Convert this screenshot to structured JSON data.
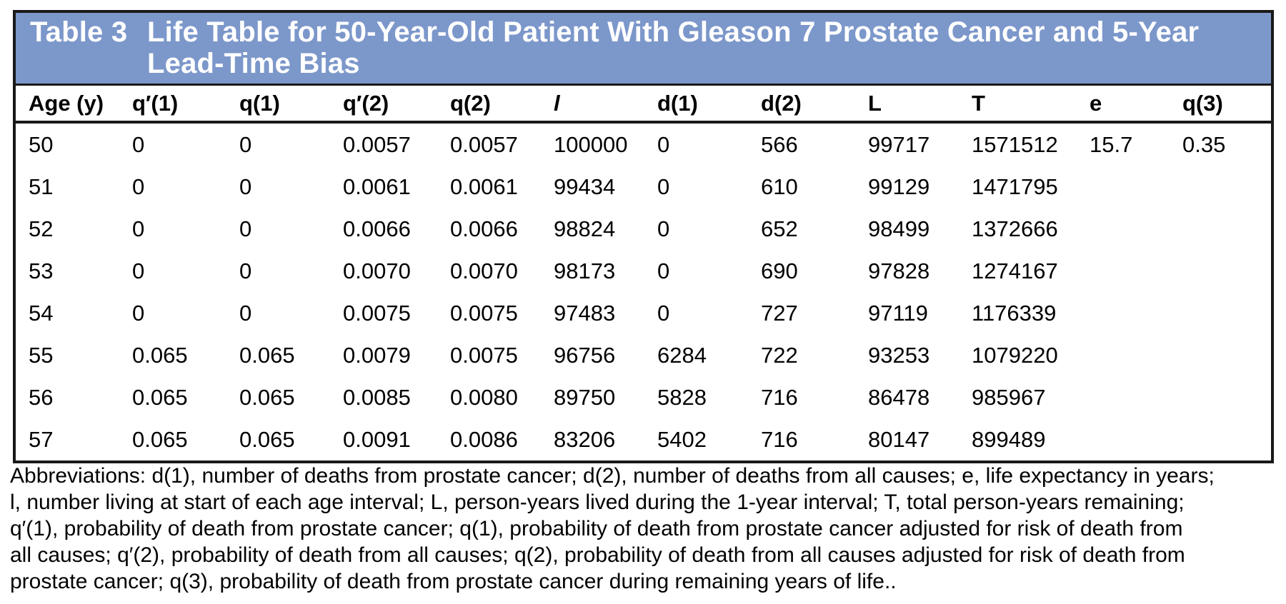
{
  "colors": {
    "header_bg": "#7c97ca",
    "header_text": "#ffffff",
    "border": "#191919",
    "body_text": "#000000"
  },
  "title": {
    "label": "Table 3",
    "text": "Life Table for 50-Year-Old Patient With Gleason 7 Prostate Cancer and 5-Year Lead-Time Bias"
  },
  "table": {
    "columns": [
      {
        "label": "Age (y)",
        "italic": false
      },
      {
        "label": "q′(1)",
        "italic": false
      },
      {
        "label": "q(1)",
        "italic": false
      },
      {
        "label": "q′(2)",
        "italic": false
      },
      {
        "label": "q(2)",
        "italic": false
      },
      {
        "label": "l",
        "italic": true
      },
      {
        "label": "d(1)",
        "italic": false
      },
      {
        "label": "d(2)",
        "italic": false
      },
      {
        "label": "L",
        "italic": false
      },
      {
        "label": "T",
        "italic": false
      },
      {
        "label": "e",
        "italic": false
      },
      {
        "label": "q(3)",
        "italic": false
      }
    ],
    "rows": [
      [
        "50",
        "0",
        "0",
        "0.0057",
        "0.0057",
        "100000",
        "0",
        "566",
        "99717",
        "1571512",
        "15.7",
        "0.35"
      ],
      [
        "51",
        "0",
        "0",
        "0.0061",
        "0.0061",
        "99434",
        "0",
        "610",
        "99129",
        "1471795",
        "",
        ""
      ],
      [
        "52",
        "0",
        "0",
        "0.0066",
        "0.0066",
        "98824",
        "0",
        "652",
        "98499",
        "1372666",
        "",
        ""
      ],
      [
        "53",
        "0",
        "0",
        "0.0070",
        "0.0070",
        "98173",
        "0",
        "690",
        "97828",
        "1274167",
        "",
        ""
      ],
      [
        "54",
        "0",
        "0",
        "0.0075",
        "0.0075",
        "97483",
        "0",
        "727",
        "97119",
        "1176339",
        "",
        ""
      ],
      [
        "55",
        "0.065",
        "0.065",
        "0.0079",
        "0.0075",
        "96756",
        "6284",
        "722",
        "93253",
        "1079220",
        "",
        ""
      ],
      [
        "56",
        "0.065",
        "0.065",
        "0.0085",
        "0.0080",
        "89750",
        "5828",
        "716",
        "86478",
        "985967",
        "",
        ""
      ],
      [
        "57",
        "0.065",
        "0.065",
        "0.0091",
        "0.0086",
        "83206",
        "5402",
        "716",
        "80147",
        "899489",
        "",
        ""
      ]
    ]
  },
  "footnote": {
    "lines": [
      "Abbreviations: d(1), number of deaths from prostate cancer; d(2), number of deaths from all causes; e, life expectancy in years;",
      "l, number living at start of each age interval; L, person-years lived during the 1-year interval; T, total person-years remaining;",
      "q′(1), probability of death from prostate cancer; q(1), probability of death from prostate cancer adjusted for risk of death from",
      "all causes; q′(2), probability of death from all causes; q(2), probability of death from all causes adjusted for risk of death from",
      "prostate cancer; q(3), probability of death from prostate cancer during remaining years of life.."
    ]
  }
}
